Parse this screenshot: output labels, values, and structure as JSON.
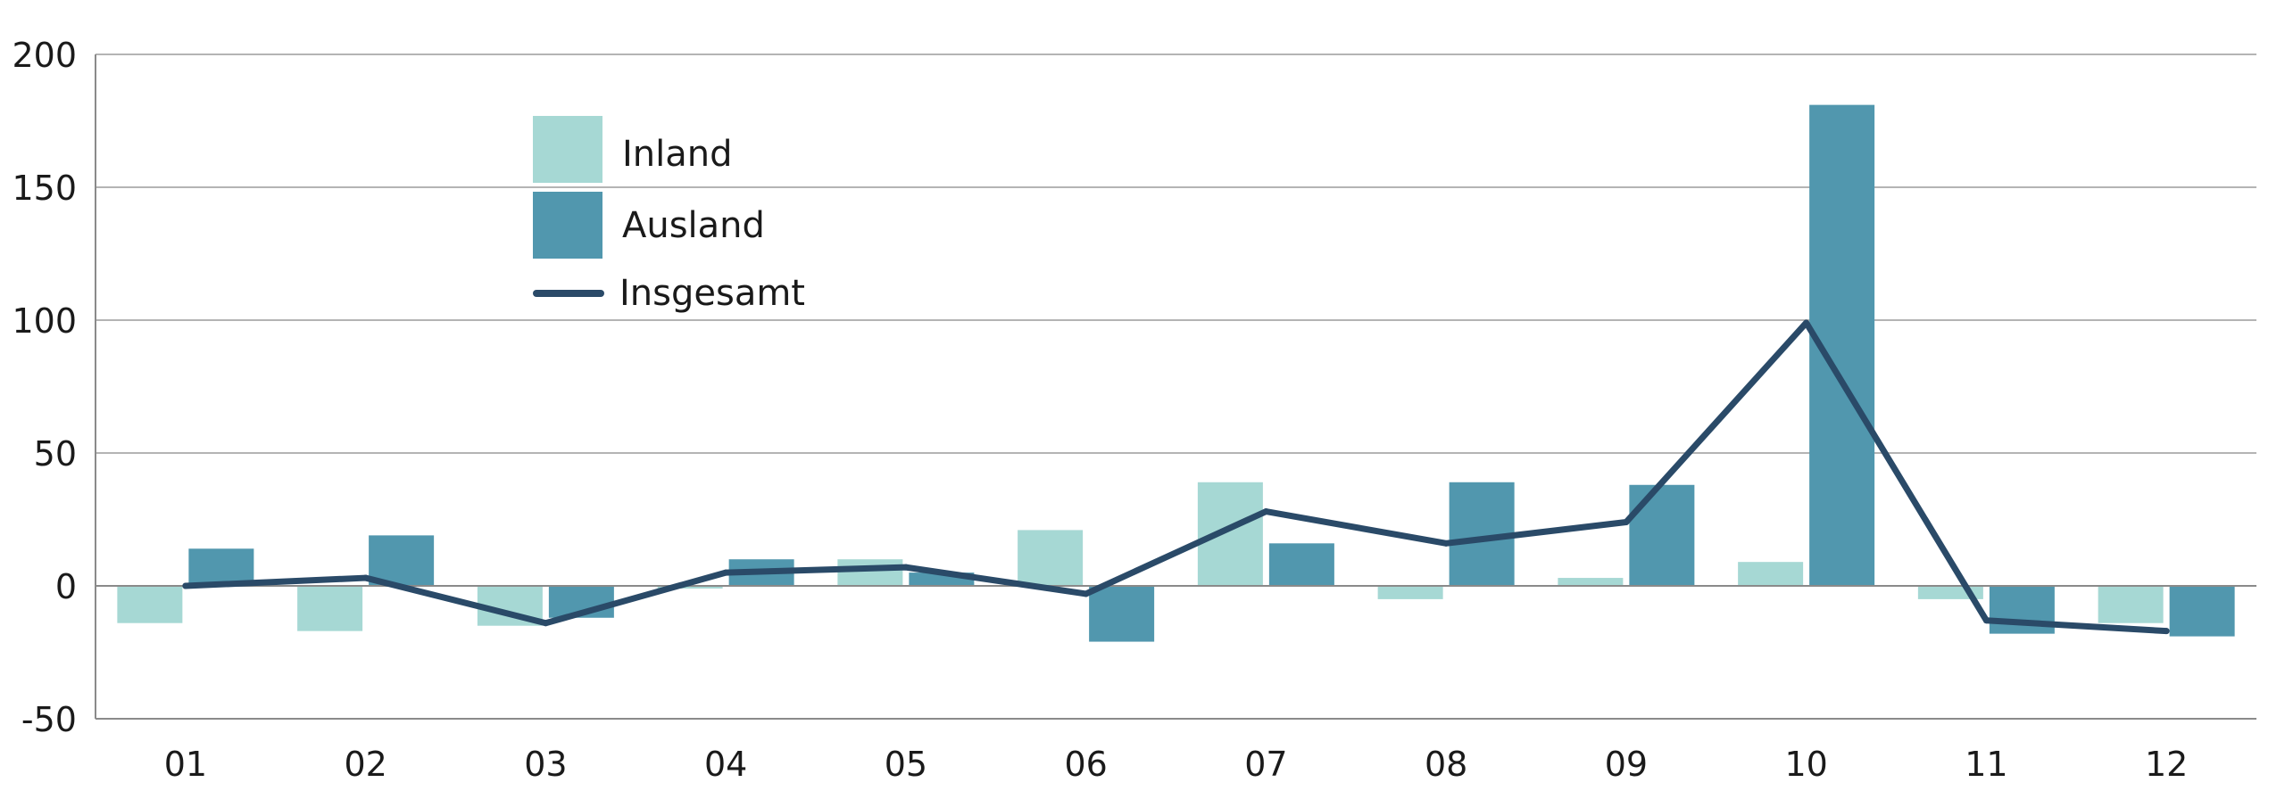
{
  "chart_data": {
    "type": "bar",
    "title": "",
    "xlabel": "",
    "ylabel": "",
    "categories": [
      "01",
      "02",
      "03",
      "04",
      "05",
      "06",
      "07",
      "08",
      "09",
      "10",
      "11",
      "12"
    ],
    "series": [
      {
        "name": "Inland",
        "type": "bar",
        "color": "#a6d8d4",
        "values": [
          -14,
          -17,
          -15,
          -1,
          10,
          21,
          39,
          -5,
          3,
          9,
          -5,
          -14
        ]
      },
      {
        "name": "Ausland",
        "type": "bar",
        "color": "#5197ae",
        "values": [
          14,
          19,
          -12,
          10,
          5,
          -21,
          16,
          39,
          38,
          181,
          -18,
          -19
        ]
      },
      {
        "name": "Insgesamt",
        "type": "line",
        "color": "#2a4a68",
        "values": [
          0,
          3,
          -14,
          5,
          7,
          -3,
          28,
          16,
          24,
          99,
          -13,
          -17
        ]
      }
    ],
    "ylim": [
      -50,
      200
    ],
    "yticks": [
      "200",
      "150",
      "100",
      "50",
      "0",
      "-50"
    ],
    "grid": true,
    "legend_position": "top-left"
  }
}
